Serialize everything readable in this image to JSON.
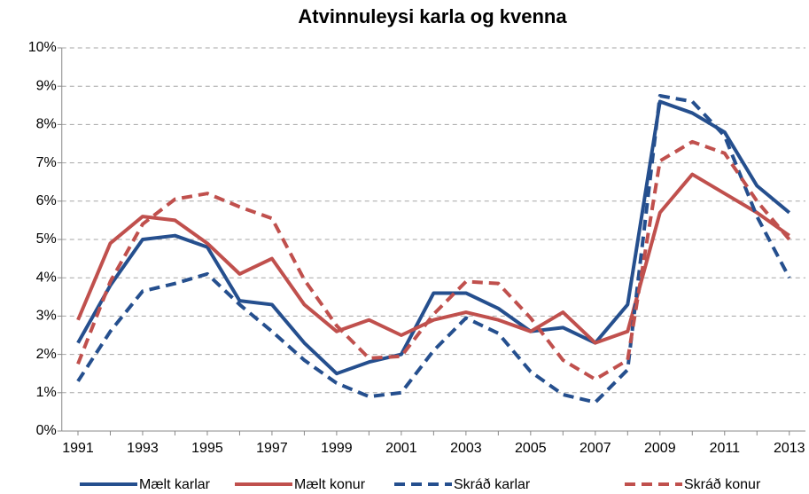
{
  "chart_data": {
    "type": "line",
    "title": "Atvinnuleysi karla og kvenna",
    "x": [
      1991,
      1992,
      1993,
      1994,
      1995,
      1996,
      1997,
      1998,
      1999,
      2000,
      2001,
      2002,
      2003,
      2004,
      2005,
      2006,
      2007,
      2008,
      2009,
      2010,
      2011,
      2012,
      2013
    ],
    "series": [
      {
        "name": "Mælt karlar",
        "color": "#254f8e",
        "dash": false,
        "values": [
          2.3,
          3.8,
          5.0,
          5.1,
          4.8,
          3.4,
          3.3,
          2.3,
          1.5,
          1.8,
          2.0,
          3.6,
          3.6,
          3.2,
          2.6,
          2.7,
          2.3,
          3.3,
          8.6,
          8.3,
          7.8,
          6.4,
          5.7
        ]
      },
      {
        "name": "Mælt konur",
        "color": "#c0504d",
        "dash": false,
        "values": [
          2.9,
          4.9,
          5.6,
          5.5,
          4.9,
          4.1,
          4.5,
          3.3,
          2.6,
          2.9,
          2.5,
          2.9,
          3.1,
          2.9,
          2.6,
          3.1,
          2.3,
          2.6,
          5.7,
          6.7,
          6.2,
          5.7,
          5.1
        ]
      },
      {
        "name": "Skráð karlar",
        "color": "#254f8e",
        "dash": true,
        "values": [
          1.3,
          2.6,
          3.65,
          3.85,
          4.1,
          3.3,
          2.6,
          1.85,
          1.25,
          0.9,
          1.0,
          2.1,
          2.95,
          2.55,
          1.55,
          0.95,
          0.75,
          1.6,
          8.75,
          8.6,
          7.7,
          5.6,
          4.0
        ]
      },
      {
        "name": "Skráð konur",
        "color": "#c0504d",
        "dash": true,
        "values": [
          1.75,
          3.9,
          5.4,
          6.05,
          6.2,
          5.85,
          5.55,
          3.95,
          2.75,
          1.9,
          1.95,
          3.05,
          3.9,
          3.85,
          2.95,
          1.85,
          1.35,
          1.85,
          7.05,
          7.55,
          7.25,
          6.0,
          5.0
        ]
      }
    ],
    "xlim": [
      1990.5,
      2013.5
    ],
    "xticks": [
      1991,
      1993,
      1995,
      1997,
      1999,
      2001,
      2003,
      2005,
      2007,
      2009,
      2011,
      2013
    ],
    "ylim": [
      0,
      10
    ],
    "yticks": [
      {
        "value": 0,
        "label": "0%"
      },
      {
        "value": 1,
        "label": "1%"
      },
      {
        "value": 2,
        "label": "2%"
      },
      {
        "value": 3,
        "label": "3%"
      },
      {
        "value": 4,
        "label": "4%"
      },
      {
        "value": 5,
        "label": "5%"
      },
      {
        "value": 6,
        "label": "6%"
      },
      {
        "value": 7,
        "label": "7%"
      },
      {
        "value": 8,
        "label": "8%"
      },
      {
        "value": 9,
        "label": "9%"
      },
      {
        "value": 10,
        "label": "10%"
      }
    ],
    "grid": true,
    "legend": "bottom"
  }
}
